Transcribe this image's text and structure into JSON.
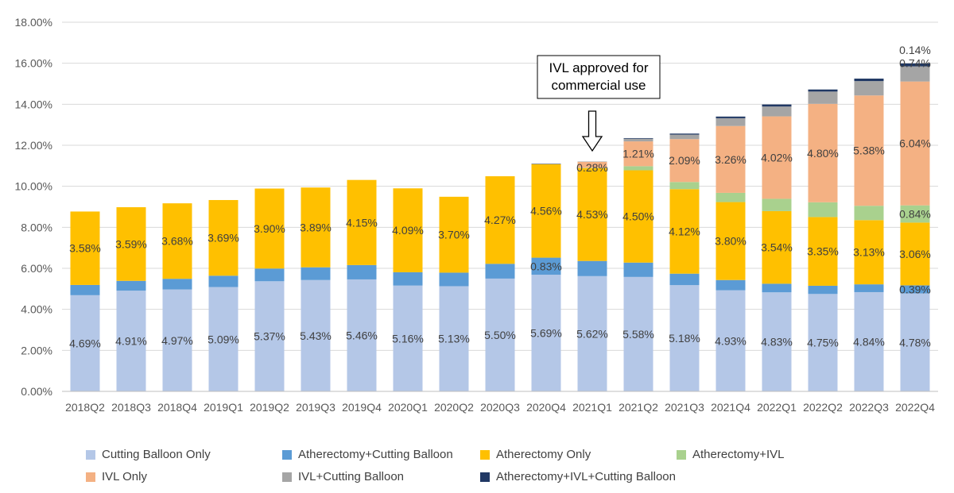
{
  "chart_data": {
    "type": "bar",
    "stacked": true,
    "title": "",
    "xlabel": "",
    "ylabel": "",
    "ylim": [
      0,
      18
    ],
    "yticks": [
      "0.00%",
      "2.00%",
      "4.00%",
      "6.00%",
      "8.00%",
      "10.00%",
      "12.00%",
      "14.00%",
      "16.00%",
      "18.00%"
    ],
    "grid": true,
    "legend_position": "bottom",
    "categories": [
      "2018Q2",
      "2018Q3",
      "2018Q4",
      "2019Q1",
      "2019Q2",
      "2019Q3",
      "2019Q4",
      "2020Q1",
      "2020Q2",
      "2020Q3",
      "2020Q4",
      "2021Q1",
      "2021Q2",
      "2021Q3",
      "2021Q4",
      "2022Q1",
      "2022Q2",
      "2022Q3",
      "2022Q4"
    ],
    "series": [
      {
        "name": "Cutting Balloon Only",
        "color": "#b4c7e7",
        "values": [
          4.69,
          4.91,
          4.97,
          5.09,
          5.37,
          5.43,
          5.46,
          5.16,
          5.13,
          5.5,
          5.69,
          5.62,
          5.58,
          5.18,
          4.93,
          4.83,
          4.75,
          4.84,
          4.78
        ],
        "labels": [
          "4.69%",
          "4.91%",
          "4.97%",
          "5.09%",
          "5.37%",
          "5.43%",
          "5.46%",
          "5.16%",
          "5.13%",
          "5.50%",
          "5.69%",
          "5.62%",
          "5.58%",
          "5.18%",
          "4.93%",
          "4.83%",
          "4.75%",
          "4.84%",
          "4.78%"
        ]
      },
      {
        "name": "Atherectomy+Cutting Balloon",
        "color": "#5b9bd5",
        "values": [
          0.5,
          0.48,
          0.52,
          0.55,
          0.62,
          0.62,
          0.7,
          0.65,
          0.66,
          0.72,
          0.83,
          0.74,
          0.7,
          0.56,
          0.5,
          0.42,
          0.4,
          0.38,
          0.39
        ],
        "labels": [
          "",
          "",
          "",
          "",
          "",
          "",
          "",
          "",
          "",
          "",
          "0.83%",
          "",
          "",
          "",
          "",
          "",
          "",
          "",
          "0.39%"
        ]
      },
      {
        "name": "Atherectomy Only",
        "color": "#ffc000",
        "values": [
          3.58,
          3.59,
          3.68,
          3.69,
          3.9,
          3.89,
          4.15,
          4.09,
          3.7,
          4.27,
          4.56,
          4.53,
          4.5,
          4.12,
          3.8,
          3.54,
          3.35,
          3.13,
          3.06
        ],
        "labels": [
          "3.58%",
          "3.59%",
          "3.68%",
          "3.69%",
          "3.90%",
          "3.89%",
          "4.15%",
          "4.09%",
          "3.70%",
          "4.27%",
          "4.56%",
          "4.53%",
          "4.50%",
          "4.12%",
          "3.80%",
          "3.54%",
          "3.35%",
          "3.13%",
          "3.06%"
        ]
      },
      {
        "name": "Atherectomy+IVL",
        "color": "#a9d18e",
        "values": [
          0,
          0,
          0,
          0,
          0,
          0,
          0,
          0,
          0,
          0,
          0,
          0.02,
          0.2,
          0.35,
          0.45,
          0.6,
          0.72,
          0.7,
          0.84
        ],
        "labels": [
          "",
          "",
          "",
          "",
          "",
          "",
          "",
          "",
          "",
          "",
          "",
          "",
          "",
          "",
          "",
          "",
          "",
          "",
          "0.84%"
        ]
      },
      {
        "name": "IVL Only",
        "color": "#f4b183",
        "values": [
          0,
          0,
          0,
          0,
          0,
          0,
          0,
          0,
          0,
          0,
          0,
          0.28,
          1.21,
          2.09,
          3.26,
          4.02,
          4.8,
          5.38,
          6.04
        ],
        "labels": [
          "",
          "",
          "",
          "",
          "",
          "",
          "",
          "",
          "",
          "",
          "",
          "0.28%",
          "1.21%",
          "2.09%",
          "3.26%",
          "4.02%",
          "4.80%",
          "5.38%",
          "6.04%"
        ]
      },
      {
        "name": "IVL+Cutting Balloon",
        "color": "#a5a5a5",
        "values": [
          0,
          0,
          0,
          0,
          0,
          0,
          0,
          0,
          0,
          0,
          0,
          0.02,
          0.13,
          0.22,
          0.38,
          0.48,
          0.6,
          0.7,
          0.74
        ],
        "labels": [
          "",
          "",
          "",
          "",
          "",
          "",
          "",
          "",
          "",
          "",
          "",
          "",
          "",
          "",
          "",
          "",
          "",
          "",
          "0.74%"
        ]
      },
      {
        "name": "Atherectomy+IVL+Cutting Balloon",
        "color": "#203864",
        "values": [
          0,
          0,
          0,
          0,
          0,
          0,
          0,
          0,
          0,
          0,
          0.02,
          0,
          0.03,
          0.05,
          0.08,
          0.1,
          0.1,
          0.12,
          0.14
        ],
        "labels": [
          "",
          "",
          "",
          "",
          "",
          "",
          "",
          "",
          "",
          "",
          "",
          "",
          "",
          "",
          "",
          "",
          "",
          "",
          "0.14%"
        ]
      }
    ],
    "annotation": {
      "text_lines": [
        "IVL approved for",
        "commercial use"
      ],
      "target_category": "2021Q1"
    }
  }
}
